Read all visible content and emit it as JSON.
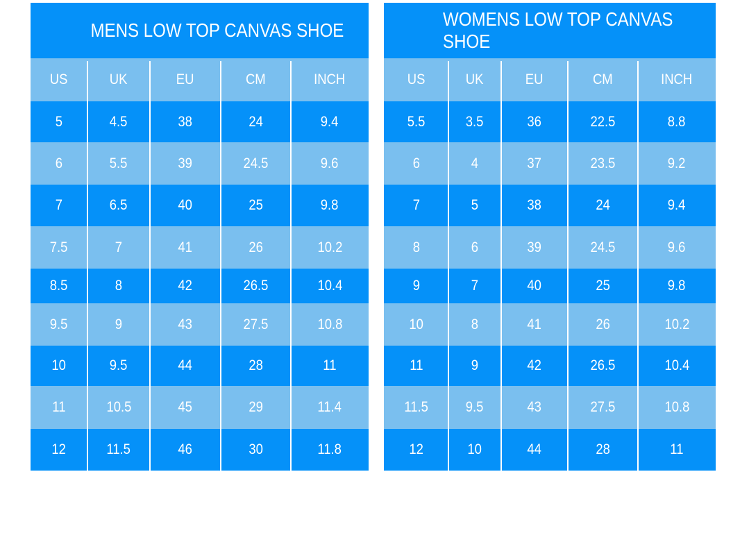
{
  "colors": {
    "dark": "#0591f9",
    "light": "#7abfef",
    "divider": "#ffffff",
    "text": "#ffffff"
  },
  "tables": [
    {
      "title": "MENS LOW TOP CANVAS SHOE",
      "headers": [
        "US",
        "UK",
        "EU",
        "CM",
        "INCH"
      ],
      "rows": [
        [
          "5",
          "4.5",
          "38",
          "24",
          "9.4"
        ],
        [
          "6",
          "5.5",
          "39",
          "24.5",
          "9.6"
        ],
        [
          "7",
          "6.5",
          "40",
          "25",
          "9.8"
        ],
        [
          "7.5",
          "7",
          "41",
          "26",
          "10.2"
        ],
        [
          "8.5",
          "8",
          "42",
          "26.5",
          "10.4"
        ],
        [
          "9.5",
          "9",
          "43",
          "27.5",
          "10.8"
        ],
        [
          "10",
          "9.5",
          "44",
          "28",
          "11"
        ],
        [
          "11",
          "10.5",
          "45",
          "29",
          "11.4"
        ],
        [
          "12",
          "11.5",
          "46",
          "30",
          "11.8"
        ]
      ]
    },
    {
      "title": "WOMENS LOW TOP CANVAS SHOE",
      "headers": [
        "US",
        "UK",
        "EU",
        "CM",
        "INCH"
      ],
      "rows": [
        [
          "5.5",
          "3.5",
          "36",
          "22.5",
          "8.8"
        ],
        [
          "6",
          "4",
          "37",
          "23.5",
          "9.2"
        ],
        [
          "7",
          "5",
          "38",
          "24",
          "9.4"
        ],
        [
          "8",
          "6",
          "39",
          "24.5",
          "9.6"
        ],
        [
          "9",
          "7",
          "40",
          "25",
          "9.8"
        ],
        [
          "10",
          "8",
          "41",
          "26",
          "10.2"
        ],
        [
          "11",
          "9",
          "42",
          "26.5",
          "10.4"
        ],
        [
          "11.5",
          "9.5",
          "43",
          "27.5",
          "10.8"
        ],
        [
          "12",
          "10",
          "44",
          "28",
          "11"
        ]
      ]
    }
  ]
}
